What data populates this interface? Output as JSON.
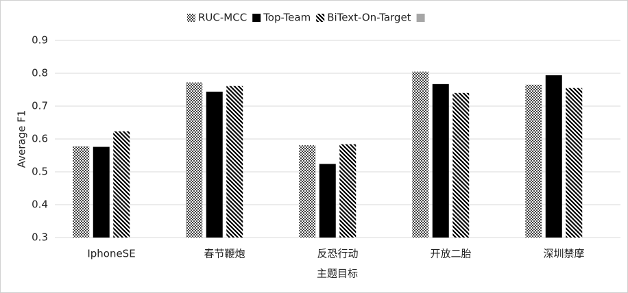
{
  "chart_data": {
    "type": "bar",
    "x_label": "主题目标",
    "y_label": "Average F1",
    "categories": [
      "IphoneSE",
      "春节鞭炮",
      "反恐行动",
      "开放二胎",
      "深圳禁摩"
    ],
    "series": [
      {
        "name": "RUC-MCC",
        "color": "#444444",
        "pattern": "dots",
        "values": [
          0.578,
          0.772,
          0.581,
          0.805,
          0.765
        ]
      },
      {
        "name": "Top-Team",
        "color": "#000000",
        "pattern": "solid",
        "values": [
          0.576,
          0.744,
          0.524,
          0.767,
          0.794
        ]
      },
      {
        "name": "BiText-On-Target",
        "color": "#000000",
        "pattern": "stripes",
        "values": [
          0.623,
          0.761,
          0.584,
          0.74,
          0.755
        ]
      },
      {
        "name": null,
        "color": "#a6a6a6",
        "pattern": "solid",
        "values": [
          null,
          null,
          null,
          null,
          null
        ]
      }
    ],
    "ylim": [
      0.3,
      0.9
    ],
    "yticks": [
      0.3,
      0.4,
      0.5,
      0.6,
      0.7,
      0.8,
      0.9
    ],
    "grid": true,
    "legend": "top"
  }
}
